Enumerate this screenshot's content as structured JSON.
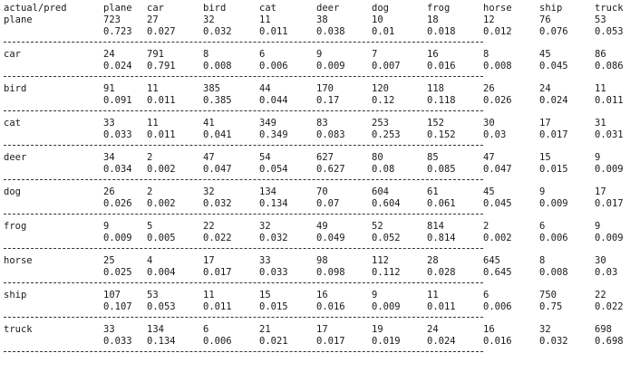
{
  "corner_label": "actual/pred",
  "columns": [
    "plane",
    "car",
    "bird",
    "cat",
    "deer",
    "dog",
    "frog",
    "horse",
    "ship",
    "truck"
  ],
  "rows": [
    {
      "label": "plane",
      "counts": [
        "723",
        "27",
        "32",
        "11",
        "38",
        "10",
        "18",
        "12",
        "76",
        "53"
      ],
      "rates": [
        "0.723",
        "0.027",
        "0.032",
        "0.011",
        "0.038",
        "0.01",
        "0.018",
        "0.012",
        "0.076",
        "0.053"
      ]
    },
    {
      "label": "car",
      "counts": [
        "24",
        "791",
        "8",
        "6",
        "9",
        "7",
        "16",
        "8",
        "45",
        "86"
      ],
      "rates": [
        "0.024",
        "0.791",
        "0.008",
        "0.006",
        "0.009",
        "0.007",
        "0.016",
        "0.008",
        "0.045",
        "0.086"
      ]
    },
    {
      "label": "bird",
      "counts": [
        "91",
        "11",
        "385",
        "44",
        "170",
        "120",
        "118",
        "26",
        "24",
        "11"
      ],
      "rates": [
        "0.091",
        "0.011",
        "0.385",
        "0.044",
        "0.17",
        "0.12",
        "0.118",
        "0.026",
        "0.024",
        "0.011"
      ]
    },
    {
      "label": "cat",
      "counts": [
        "33",
        "11",
        "41",
        "349",
        "83",
        "253",
        "152",
        "30",
        "17",
        "31"
      ],
      "rates": [
        "0.033",
        "0.011",
        "0.041",
        "0.349",
        "0.083",
        "0.253",
        "0.152",
        "0.03",
        "0.017",
        "0.031"
      ]
    },
    {
      "label": "deer",
      "counts": [
        "34",
        "2",
        "47",
        "54",
        "627",
        "80",
        "85",
        "47",
        "15",
        "9"
      ],
      "rates": [
        "0.034",
        "0.002",
        "0.047",
        "0.054",
        "0.627",
        "0.08",
        "0.085",
        "0.047",
        "0.015",
        "0.009"
      ]
    },
    {
      "label": "dog",
      "counts": [
        "26",
        "2",
        "32",
        "134",
        "70",
        "604",
        "61",
        "45",
        "9",
        "17"
      ],
      "rates": [
        "0.026",
        "0.002",
        "0.032",
        "0.134",
        "0.07",
        "0.604",
        "0.061",
        "0.045",
        "0.009",
        "0.017"
      ]
    },
    {
      "label": "frog",
      "counts": [
        "9",
        "5",
        "22",
        "32",
        "49",
        "52",
        "814",
        "2",
        "6",
        "9"
      ],
      "rates": [
        "0.009",
        "0.005",
        "0.022",
        "0.032",
        "0.049",
        "0.052",
        "0.814",
        "0.002",
        "0.006",
        "0.009"
      ]
    },
    {
      "label": "horse",
      "counts": [
        "25",
        "4",
        "17",
        "33",
        "98",
        "112",
        "28",
        "645",
        "8",
        "30"
      ],
      "rates": [
        "0.025",
        "0.004",
        "0.017",
        "0.033",
        "0.098",
        "0.112",
        "0.028",
        "0.645",
        "0.008",
        "0.03"
      ]
    },
    {
      "label": "ship",
      "counts": [
        "107",
        "53",
        "11",
        "15",
        "16",
        "9",
        "11",
        "6",
        "750",
        "22"
      ],
      "rates": [
        "0.107",
        "0.053",
        "0.011",
        "0.015",
        "0.016",
        "0.009",
        "0.011",
        "0.006",
        "0.75",
        "0.022"
      ]
    },
    {
      "label": "truck",
      "counts": [
        "33",
        "134",
        "6",
        "21",
        "17",
        "19",
        "24",
        "16",
        "32",
        "698"
      ],
      "rates": [
        "0.033",
        "0.134",
        "0.006",
        "0.021",
        "0.017",
        "0.019",
        "0.024",
        "0.016",
        "0.032",
        "0.698"
      ]
    }
  ]
}
